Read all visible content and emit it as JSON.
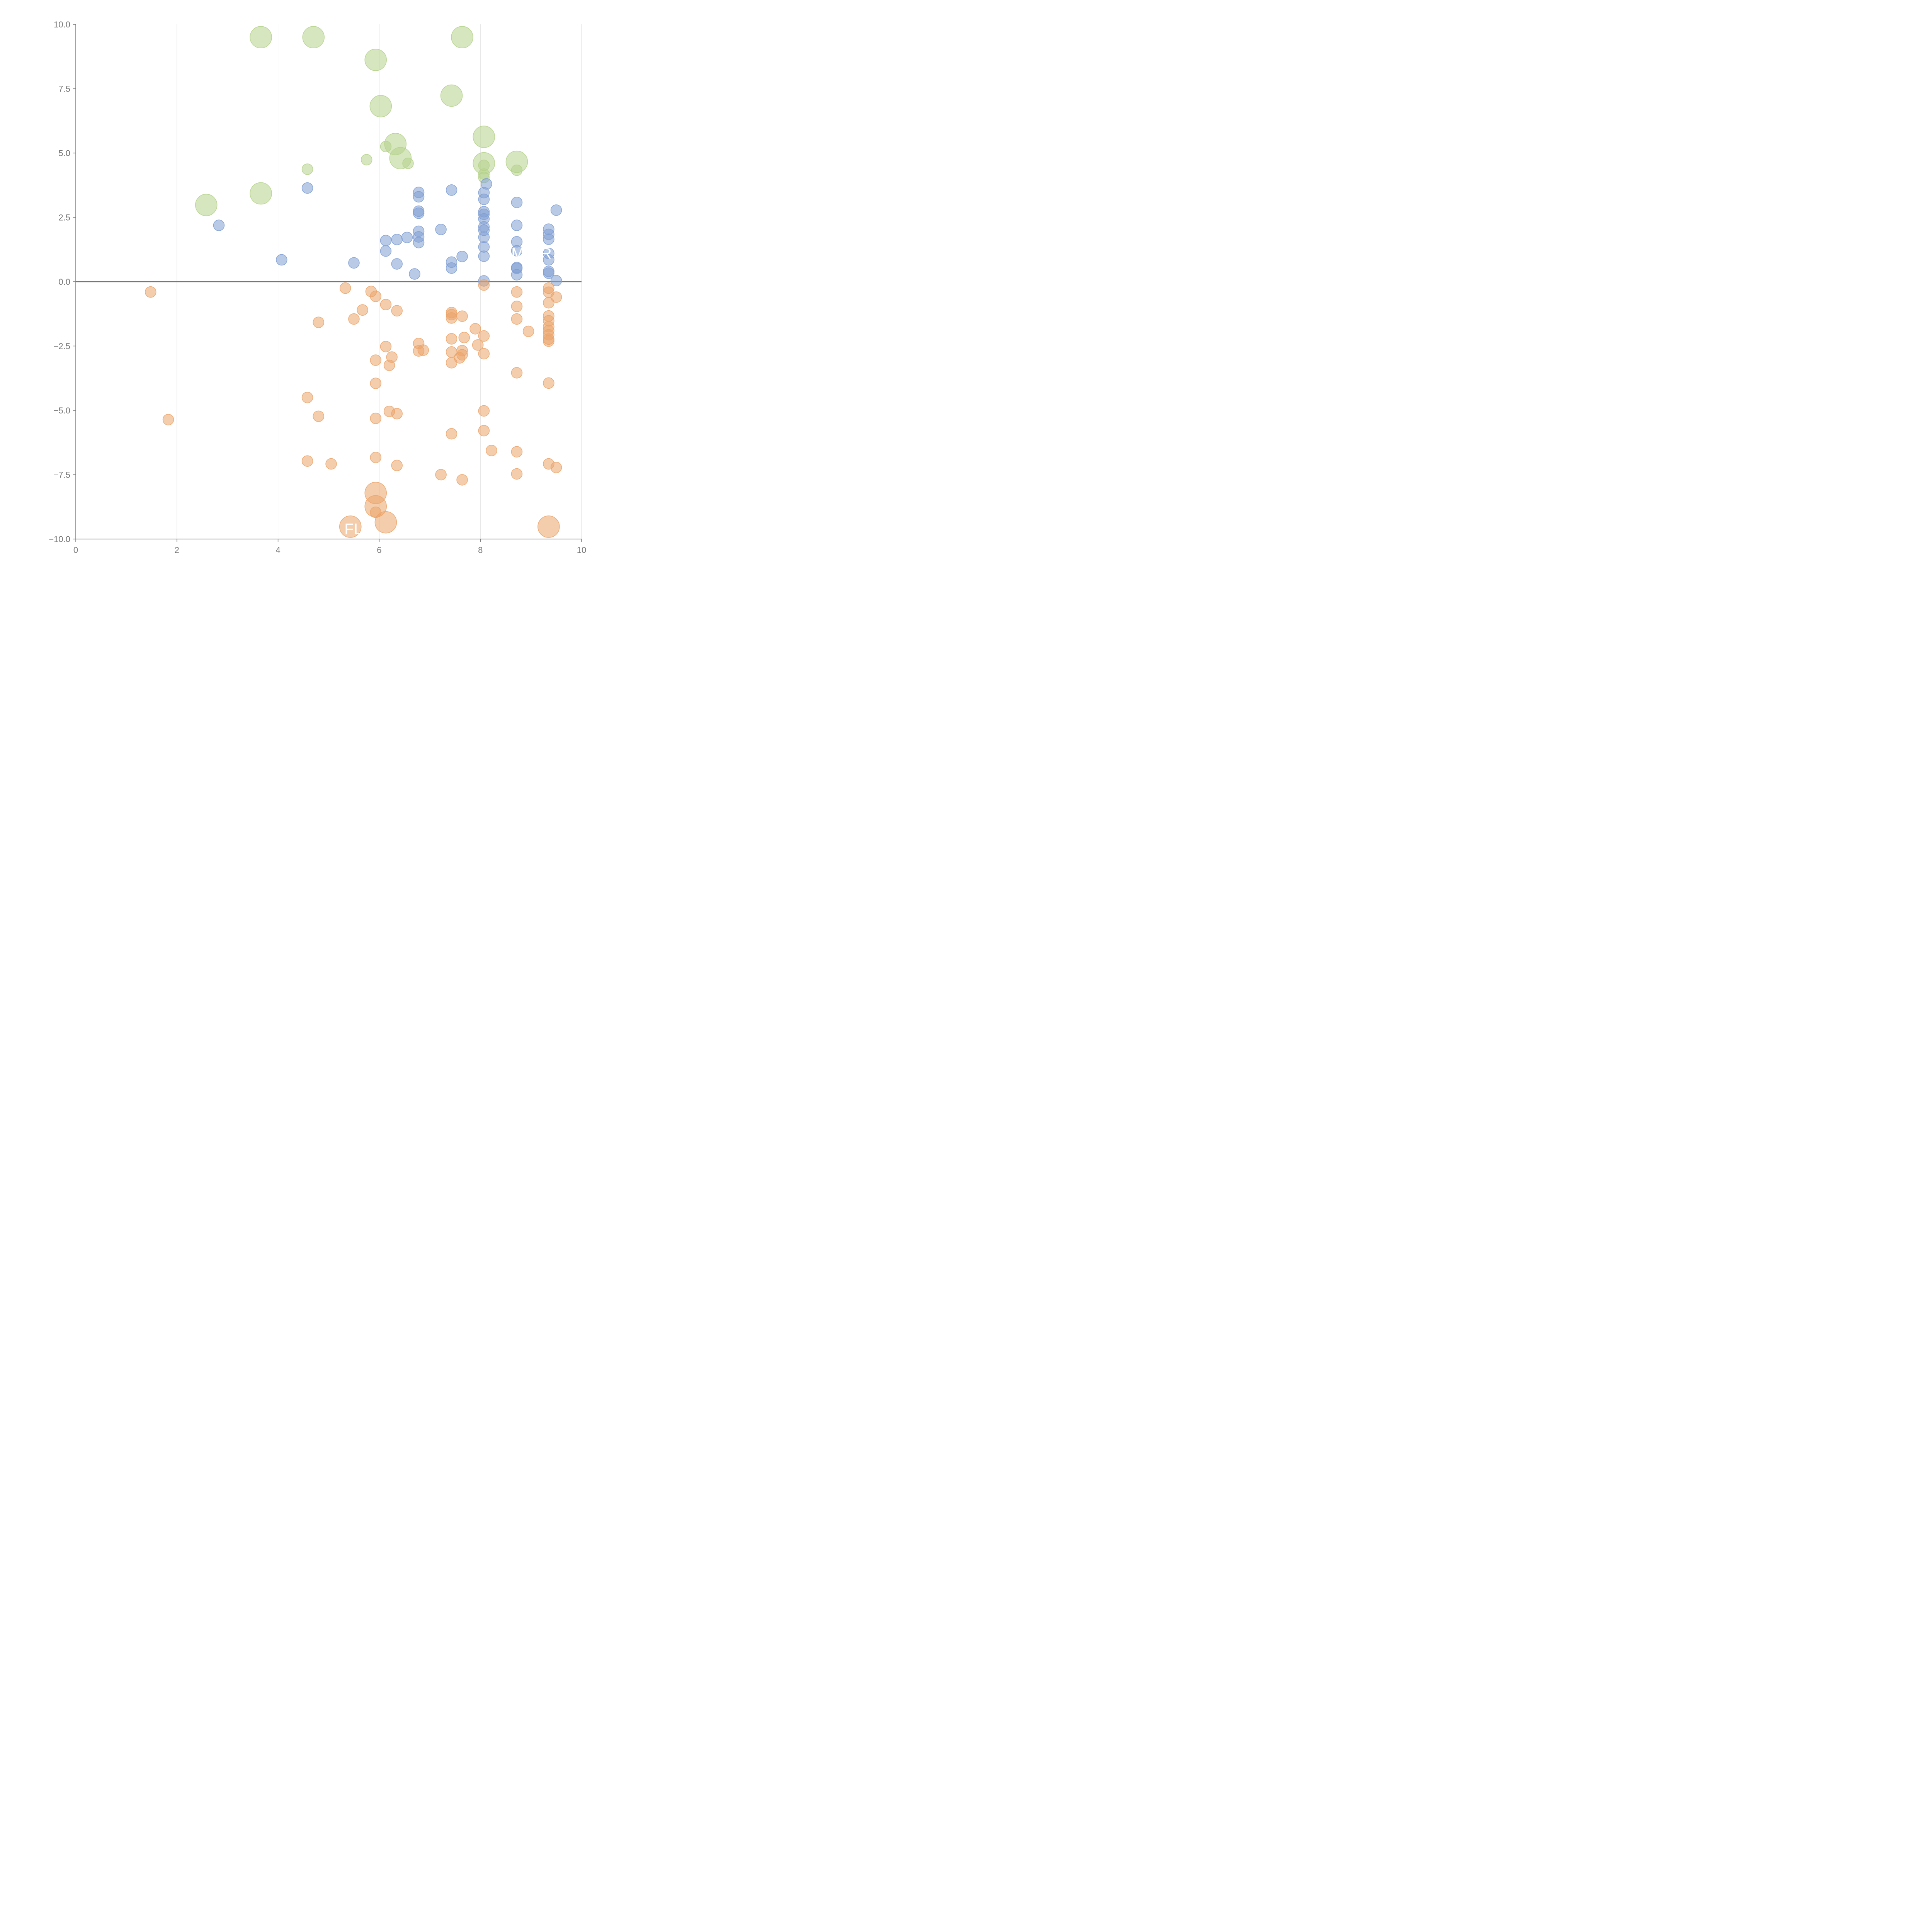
{
  "chart_data": {
    "type": "scatter",
    "title": "",
    "xlabel": "",
    "ylabel": "",
    "xlim": [
      0,
      10
    ],
    "ylim": [
      -10,
      10
    ],
    "grid": "vertical",
    "x_ticks": [
      0,
      2,
      4,
      6,
      8,
      10
    ],
    "y_ticks": [
      -10,
      -7.5,
      -5,
      -2.5,
      0,
      2.5,
      5,
      7.5,
      10
    ],
    "x_tick_labels": [
      "0",
      "2",
      "4",
      "6",
      "8",
      "10"
    ],
    "y_tick_labels": [
      "−10.0",
      "−7.5",
      "−5.0",
      "−2.5",
      "0.0",
      "2.5",
      "5.0",
      "7.5",
      "10.0"
    ],
    "colors": {
      "green": "#b5d18a",
      "blue": "#7f9fd3",
      "orange": "#eba46a"
    },
    "annotations": [
      {
        "text": "FLU",
        "x": 5.6,
        "y": -9.6
      },
      {
        "text": "MC",
        "x": 8.85,
        "y": 1.1
      },
      {
        "text": "R",
        "x": 9.3,
        "y": 1.1
      }
    ],
    "series": [
      {
        "name": "green-large",
        "color": "green",
        "size": "large",
        "points": [
          [
            3.66,
            9.5
          ],
          [
            4.7,
            9.5
          ],
          [
            7.64,
            9.5
          ],
          [
            5.93,
            8.62
          ],
          [
            7.43,
            7.23
          ],
          [
            6.03,
            6.82
          ],
          [
            8.07,
            5.63
          ],
          [
            6.32,
            5.35
          ],
          [
            6.42,
            4.8
          ],
          [
            8.72,
            4.66
          ],
          [
            8.07,
            4.6
          ],
          [
            3.66,
            3.43
          ],
          [
            2.58,
            2.98
          ]
        ]
      },
      {
        "name": "green-small",
        "color": "green",
        "size": "small",
        "points": [
          [
            6.13,
            5.25
          ],
          [
            5.75,
            4.74
          ],
          [
            6.57,
            4.6
          ],
          [
            4.58,
            4.37
          ],
          [
            8.72,
            4.33
          ],
          [
            8.07,
            4.52
          ],
          [
            8.07,
            4.18
          ],
          [
            8.07,
            4.05
          ]
        ]
      },
      {
        "name": "blue",
        "color": "blue",
        "size": "small",
        "points": [
          [
            4.58,
            3.64
          ],
          [
            2.83,
            2.19
          ],
          [
            4.07,
            0.85
          ],
          [
            5.5,
            0.73
          ],
          [
            6.13,
            1.6
          ],
          [
            6.13,
            1.19
          ],
          [
            6.35,
            1.64
          ],
          [
            6.35,
            0.69
          ],
          [
            6.55,
            1.72
          ],
          [
            6.7,
            0.3
          ],
          [
            6.78,
            3.47
          ],
          [
            6.78,
            3.3
          ],
          [
            6.78,
            2.74
          ],
          [
            6.78,
            2.66
          ],
          [
            6.78,
            1.96
          ],
          [
            6.78,
            1.74
          ],
          [
            6.78,
            1.52
          ],
          [
            7.22,
            2.03
          ],
          [
            7.43,
            3.56
          ],
          [
            7.43,
            0.76
          ],
          [
            7.43,
            0.53
          ],
          [
            7.64,
            0.98
          ],
          [
            8.07,
            3.46
          ],
          [
            8.07,
            3.2
          ],
          [
            8.07,
            2.72
          ],
          [
            8.07,
            2.62
          ],
          [
            8.07,
            2.44
          ],
          [
            8.07,
            2.13
          ],
          [
            8.07,
            2.0
          ],
          [
            8.07,
            1.73
          ],
          [
            8.07,
            1.35
          ],
          [
            8.07,
            0.99
          ],
          [
            8.07,
            0.03
          ],
          [
            8.12,
            3.8
          ],
          [
            8.72,
            3.08
          ],
          [
            8.72,
            2.19
          ],
          [
            8.72,
            1.55
          ],
          [
            8.72,
            1.2
          ],
          [
            8.72,
            0.55
          ],
          [
            8.72,
            0.52
          ],
          [
            8.72,
            0.27
          ],
          [
            9.35,
            2.04
          ],
          [
            9.35,
            1.84
          ],
          [
            9.35,
            1.65
          ],
          [
            9.35,
            1.1
          ],
          [
            9.35,
            0.85
          ],
          [
            9.35,
            0.4
          ],
          [
            9.35,
            0.33
          ],
          [
            9.5,
            2.78
          ],
          [
            9.5,
            0.04
          ]
        ]
      },
      {
        "name": "orange-small",
        "color": "orange",
        "size": "small",
        "points": [
          [
            1.48,
            -0.4
          ],
          [
            1.83,
            -5.36
          ],
          [
            4.58,
            -4.5
          ],
          [
            4.58,
            -6.97
          ],
          [
            4.8,
            -1.58
          ],
          [
            4.8,
            -5.23
          ],
          [
            5.05,
            -7.08
          ],
          [
            5.33,
            -0.25
          ],
          [
            5.5,
            -1.45
          ],
          [
            5.67,
            -1.1
          ],
          [
            5.84,
            -0.38
          ],
          [
            5.93,
            -0.57
          ],
          [
            5.93,
            -3.05
          ],
          [
            5.93,
            -3.95
          ],
          [
            5.93,
            -5.31
          ],
          [
            5.93,
            -6.83
          ],
          [
            5.93,
            -8.96
          ],
          [
            6.13,
            -0.89
          ],
          [
            6.13,
            -2.52
          ],
          [
            6.2,
            -3.25
          ],
          [
            6.2,
            -5.04
          ],
          [
            6.25,
            -2.93
          ],
          [
            6.35,
            -1.13
          ],
          [
            6.35,
            -5.13
          ],
          [
            6.35,
            -7.14
          ],
          [
            6.78,
            -2.4
          ],
          [
            6.78,
            -2.69
          ],
          [
            6.87,
            -2.66
          ],
          [
            7.22,
            -7.5
          ],
          [
            7.43,
            -1.2
          ],
          [
            7.43,
            -1.28
          ],
          [
            7.43,
            -1.41
          ],
          [
            7.43,
            -2.22
          ],
          [
            7.43,
            -2.73
          ],
          [
            7.43,
            -3.15
          ],
          [
            7.43,
            -5.91
          ],
          [
            7.59,
            -2.96
          ],
          [
            7.64,
            -1.34
          ],
          [
            7.64,
            -2.68
          ],
          [
            7.64,
            -2.84
          ],
          [
            7.64,
            -7.7
          ],
          [
            7.68,
            -2.17
          ],
          [
            7.9,
            -1.83
          ],
          [
            7.95,
            -2.46
          ],
          [
            8.07,
            -0.13
          ],
          [
            8.07,
            -2.11
          ],
          [
            8.07,
            -2.8
          ],
          [
            8.07,
            -5.02
          ],
          [
            8.07,
            -5.79
          ],
          [
            8.22,
            -6.56
          ],
          [
            8.72,
            -0.4
          ],
          [
            8.72,
            -0.96
          ],
          [
            8.72,
            -1.45
          ],
          [
            8.72,
            -3.54
          ],
          [
            8.72,
            -6.61
          ],
          [
            8.72,
            -7.47
          ],
          [
            8.95,
            -1.93
          ],
          [
            9.35,
            -0.25
          ],
          [
            9.35,
            -0.41
          ],
          [
            9.35,
            -0.82
          ],
          [
            9.35,
            -1.33
          ],
          [
            9.35,
            -1.52
          ],
          [
            9.35,
            -1.75
          ],
          [
            9.35,
            -1.9
          ],
          [
            9.35,
            -2.06
          ],
          [
            9.35,
            -2.23
          ],
          [
            9.35,
            -2.31
          ],
          [
            9.35,
            -3.94
          ],
          [
            9.35,
            -7.08
          ],
          [
            9.5,
            -0.6
          ],
          [
            9.5,
            -7.22
          ]
        ]
      },
      {
        "name": "orange-large",
        "color": "orange",
        "size": "large",
        "points": [
          [
            5.93,
            -8.21
          ],
          [
            5.93,
            -8.73
          ],
          [
            6.13,
            -9.35
          ],
          [
            5.43,
            -9.52
          ],
          [
            9.35,
            -9.52
          ]
        ]
      }
    ]
  }
}
